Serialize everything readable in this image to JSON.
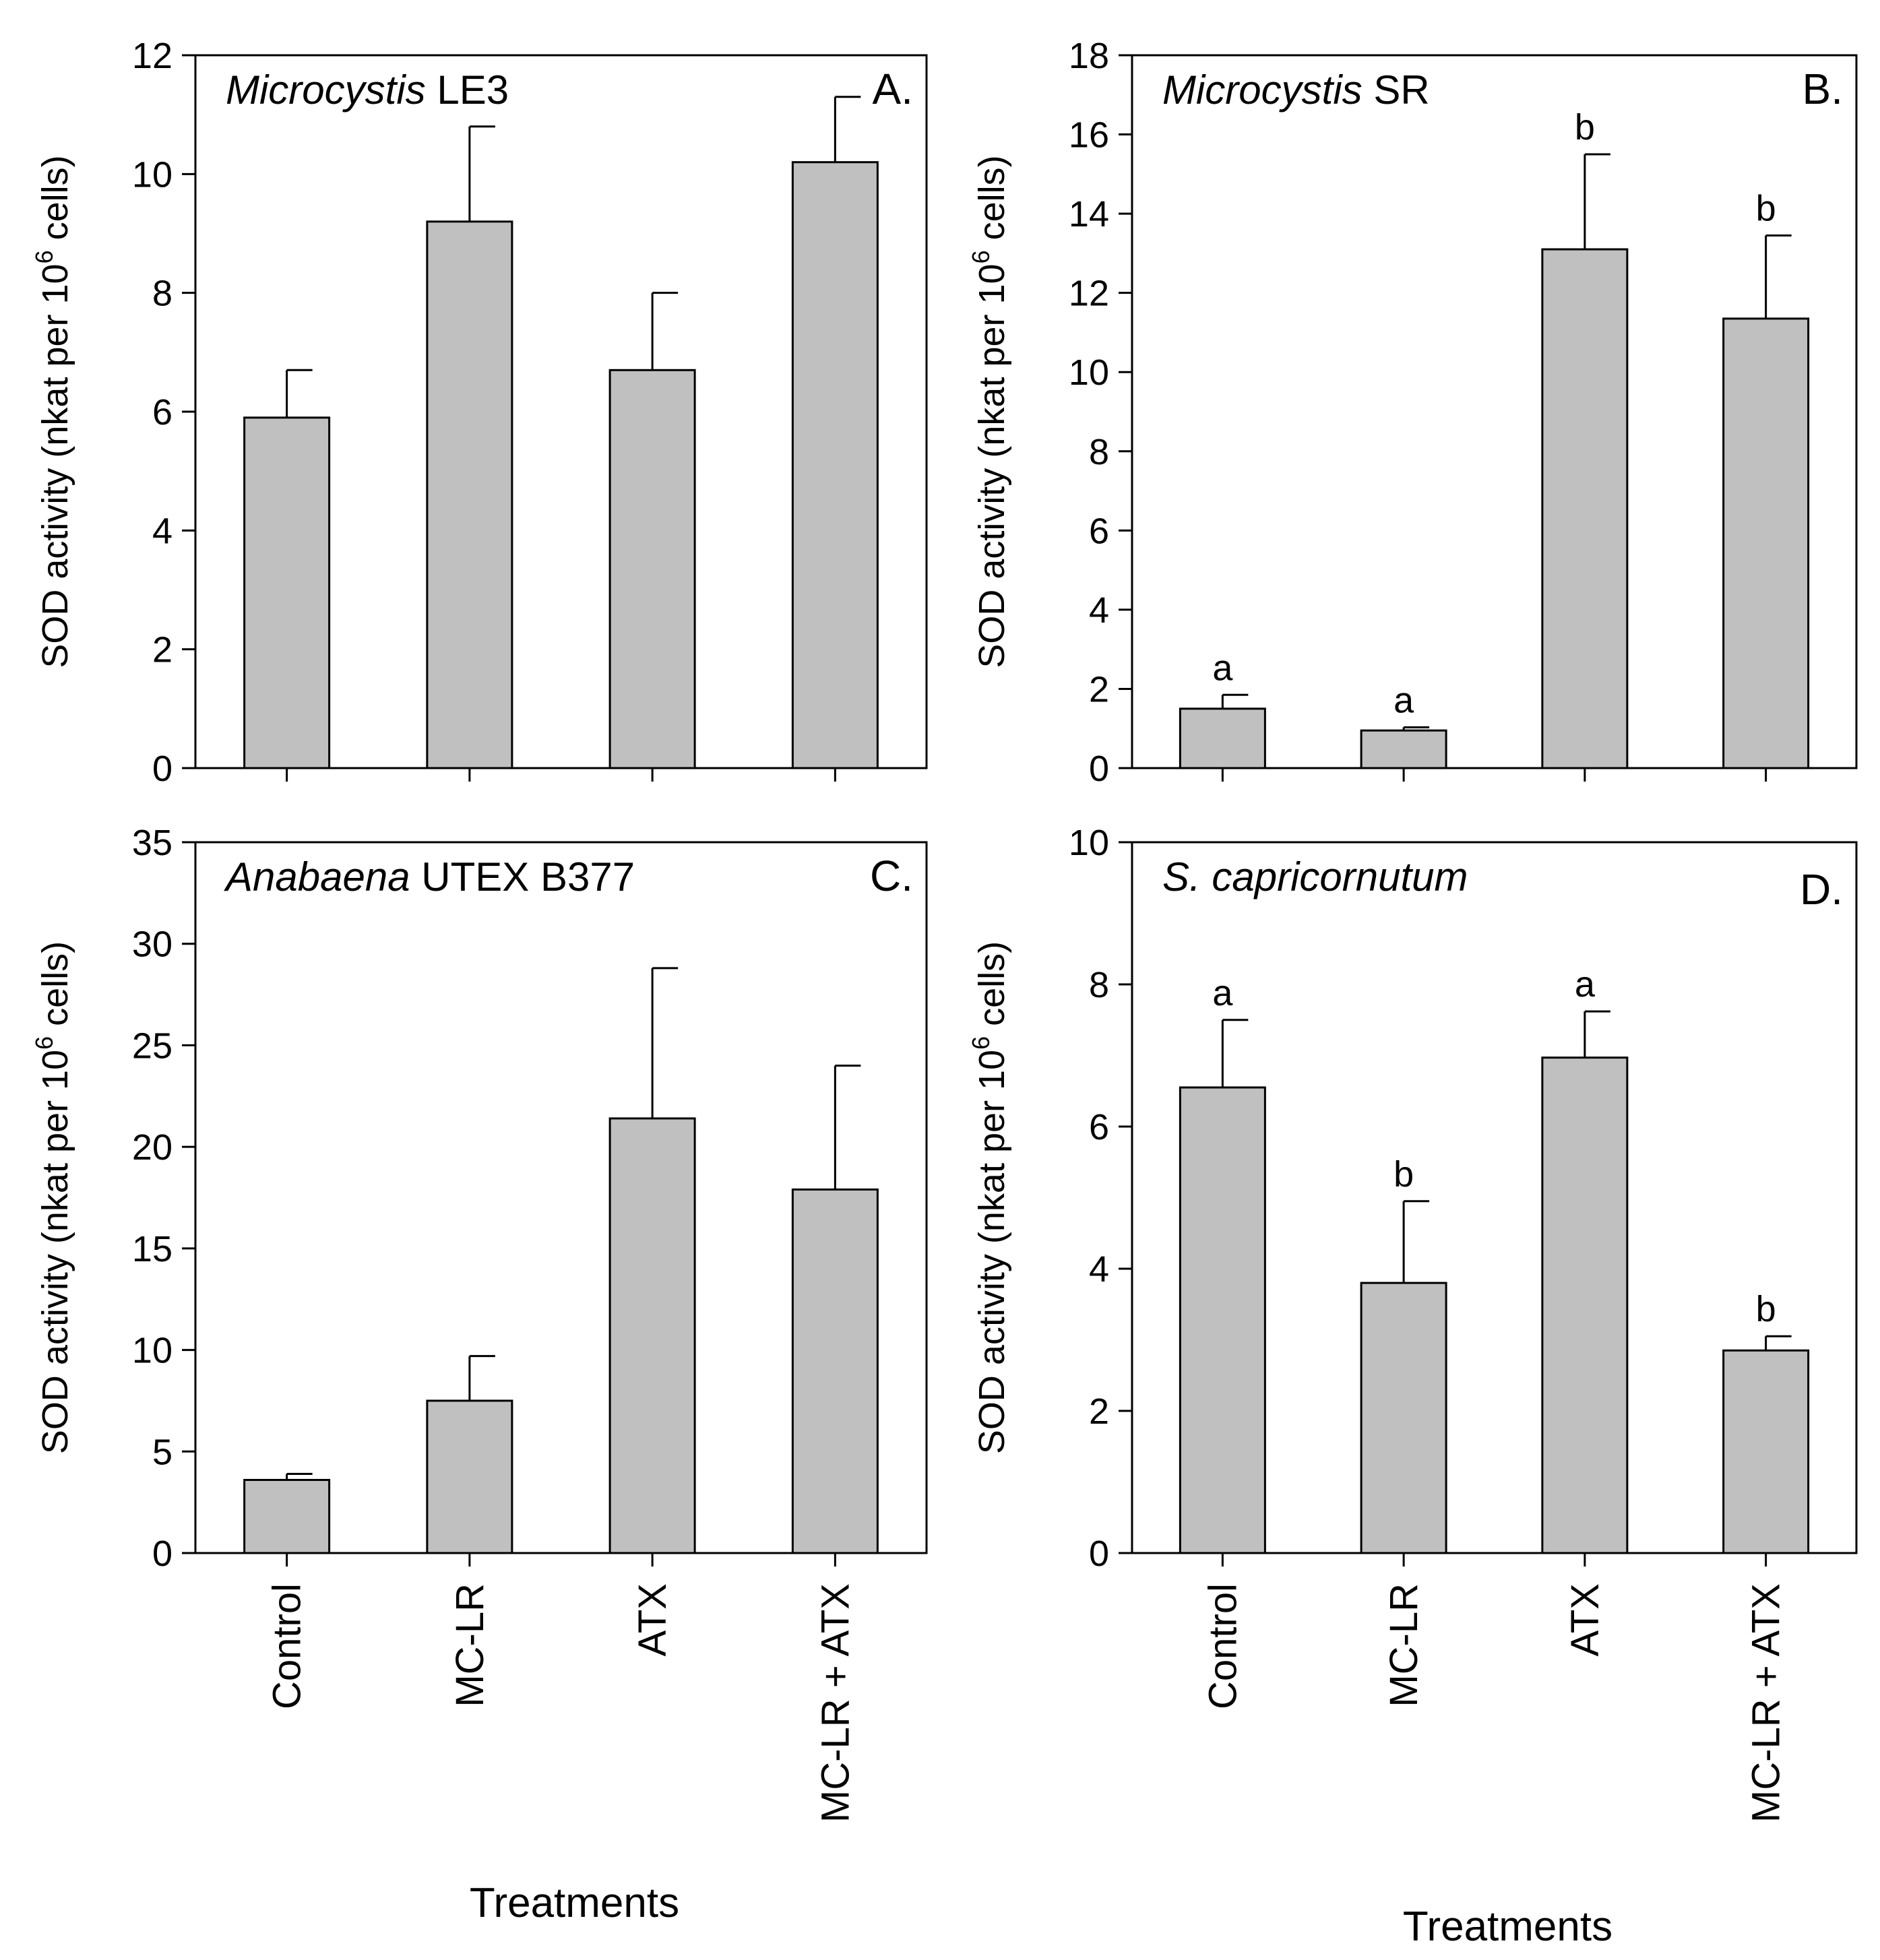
{
  "chart_data": [
    {
      "type": "bar",
      "panel": "A.",
      "title_italic": "Microcystis",
      "title_rest": " LE3",
      "ylabel": "SOD activity (nkat per 10",
      "ylabel_sup": "6",
      "ylabel_end": " cells)",
      "xlabel": "",
      "categories": [
        "Control",
        "MC-LR",
        "ATX",
        "MC-LR + ATX"
      ],
      "values": [
        5.9,
        9.2,
        6.7,
        10.2
      ],
      "errors": [
        0.8,
        1.6,
        1.3,
        1.1
      ],
      "significance": [
        "",
        "",
        "",
        ""
      ],
      "ylim": [
        0,
        12
      ],
      "yticks": [
        "0",
        "2",
        "4",
        "6",
        "8",
        "10",
        "12"
      ],
      "show_category_labels": false
    },
    {
      "type": "bar",
      "panel": "B.",
      "title_italic": "Microcystis",
      "title_rest": " SR",
      "ylabel": "SOD activity (nkat per 10",
      "ylabel_sup": "6",
      "ylabel_end": " cells)",
      "xlabel": "",
      "categories": [
        "Control",
        "MC-LR",
        "ATX",
        "MC-LR + ATX"
      ],
      "values": [
        1.5,
        0.95,
        13.1,
        11.35
      ],
      "errors": [
        0.35,
        0.08,
        2.4,
        2.1
      ],
      "significance": [
        "a",
        "a",
        "b",
        "b"
      ],
      "ylim": [
        0,
        18
      ],
      "yticks": [
        "0",
        "2",
        "4",
        "6",
        "8",
        "10",
        "12",
        "14",
        "16",
        "18"
      ],
      "show_category_labels": false
    },
    {
      "type": "bar",
      "panel": "C.",
      "title_italic": "Anabaena",
      "title_rest": " UTEX B377",
      "ylabel": "SOD activity (nkat per 10",
      "ylabel_sup": "6",
      "ylabel_end": " cells)",
      "xlabel": "Treatments",
      "categories": [
        "Control",
        "MC-LR",
        "ATX",
        "MC-LR + ATX"
      ],
      "values": [
        3.6,
        7.5,
        21.4,
        17.9
      ],
      "errors": [
        0.3,
        2.2,
        7.4,
        6.1
      ],
      "significance": [
        "",
        "",
        "",
        ""
      ],
      "ylim": [
        0,
        35
      ],
      "yticks": [
        "0",
        "5",
        "10",
        "15",
        "20",
        "25",
        "30",
        "35"
      ],
      "show_category_labels": true
    },
    {
      "type": "bar",
      "panel": "D.",
      "title_italic": "S. capricornutum",
      "title_rest": "",
      "ylabel": "SOD activity (nkat per 10",
      "ylabel_sup": "6",
      "ylabel_end": " cells)",
      "xlabel": "Treatments",
      "categories": [
        "Control",
        "MC-LR",
        "ATX",
        "MC-LR + ATX"
      ],
      "values": [
        6.55,
        3.8,
        6.97,
        2.85
      ],
      "errors": [
        0.95,
        1.15,
        0.65,
        0.2
      ],
      "significance": [
        "a",
        "b",
        "a",
        "b"
      ],
      "ylim": [
        0,
        10
      ],
      "yticks": [
        "0",
        "2",
        "4",
        "6",
        "8",
        "10"
      ],
      "show_category_labels": true
    }
  ],
  "colors": {
    "bar_fill": "#c0c0c0",
    "bar_stroke": "#000000",
    "axis": "#000000",
    "background": "#ffffff"
  }
}
